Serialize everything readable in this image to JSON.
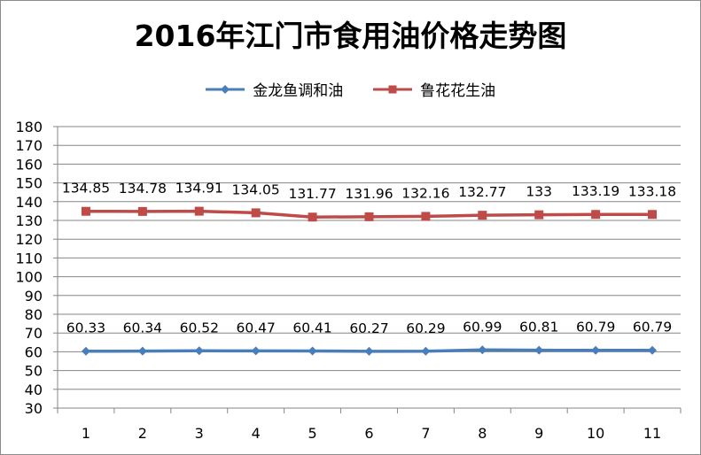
{
  "chart_data": {
    "type": "line",
    "title": "2016年江门市食用油价格走势图",
    "categories": [
      "1",
      "2",
      "3",
      "4",
      "5",
      "6",
      "7",
      "8",
      "9",
      "10",
      "11"
    ],
    "series": [
      {
        "name": "金龙鱼调和油",
        "color": "#4a7ebb",
        "marker": "diamond",
        "values": [
          60.33,
          60.34,
          60.52,
          60.47,
          60.41,
          60.27,
          60.29,
          60.99,
          60.81,
          60.79,
          60.79
        ],
        "labels": [
          "60.33",
          "60.34",
          "60.52",
          "60.47",
          "60.41",
          "60.27",
          "60.29",
          "60.99",
          "60.81",
          "60.79",
          "60.79"
        ]
      },
      {
        "name": "鲁花花生油",
        "color": "#be4b48",
        "marker": "square",
        "values": [
          134.85,
          134.78,
          134.91,
          134.05,
          131.77,
          131.96,
          132.16,
          132.77,
          133,
          133.19,
          133.18
        ],
        "labels": [
          "134.85",
          "134.78",
          "134.91",
          "134.05",
          "131.77",
          "131.96",
          "132.16",
          "132.77",
          "133",
          "133.19",
          "133.18"
        ]
      }
    ],
    "ylim": [
      30,
      180
    ],
    "yticks": [
      "30",
      "40",
      "50",
      "60",
      "70",
      "80",
      "90",
      "100",
      "110",
      "120",
      "130",
      "140",
      "150",
      "160",
      "170",
      "180"
    ],
    "grid": true,
    "legend_position": "top"
  }
}
